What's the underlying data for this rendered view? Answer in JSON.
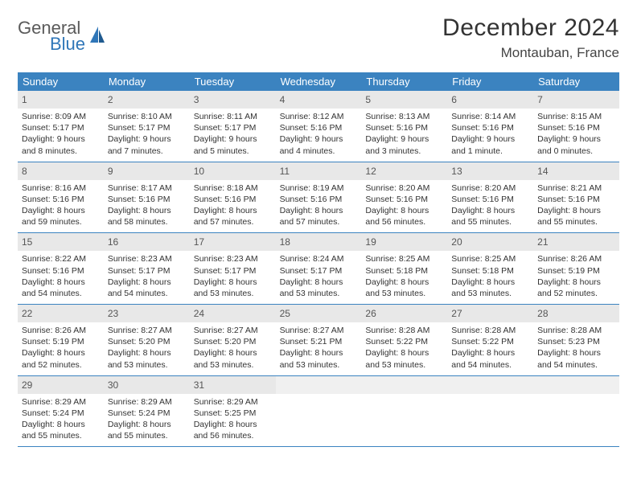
{
  "logo": {
    "line1": "General",
    "line2": "Blue"
  },
  "title": "December 2024",
  "location": "Montauban, France",
  "colors": {
    "header_bg": "#3b83c0",
    "daynum_bg": "#e8e8e8",
    "week_border": "#3b83c0",
    "logo_gray": "#5a5a5a",
    "logo_blue": "#2f76b8"
  },
  "weekdays": [
    "Sunday",
    "Monday",
    "Tuesday",
    "Wednesday",
    "Thursday",
    "Friday",
    "Saturday"
  ],
  "weeks": [
    [
      {
        "n": "1",
        "sr": "Sunrise: 8:09 AM",
        "ss": "Sunset: 5:17 PM",
        "d1": "Daylight: 9 hours",
        "d2": "and 8 minutes."
      },
      {
        "n": "2",
        "sr": "Sunrise: 8:10 AM",
        "ss": "Sunset: 5:17 PM",
        "d1": "Daylight: 9 hours",
        "d2": "and 7 minutes."
      },
      {
        "n": "3",
        "sr": "Sunrise: 8:11 AM",
        "ss": "Sunset: 5:17 PM",
        "d1": "Daylight: 9 hours",
        "d2": "and 5 minutes."
      },
      {
        "n": "4",
        "sr": "Sunrise: 8:12 AM",
        "ss": "Sunset: 5:16 PM",
        "d1": "Daylight: 9 hours",
        "d2": "and 4 minutes."
      },
      {
        "n": "5",
        "sr": "Sunrise: 8:13 AM",
        "ss": "Sunset: 5:16 PM",
        "d1": "Daylight: 9 hours",
        "d2": "and 3 minutes."
      },
      {
        "n": "6",
        "sr": "Sunrise: 8:14 AM",
        "ss": "Sunset: 5:16 PM",
        "d1": "Daylight: 9 hours",
        "d2": "and 1 minute."
      },
      {
        "n": "7",
        "sr": "Sunrise: 8:15 AM",
        "ss": "Sunset: 5:16 PM",
        "d1": "Daylight: 9 hours",
        "d2": "and 0 minutes."
      }
    ],
    [
      {
        "n": "8",
        "sr": "Sunrise: 8:16 AM",
        "ss": "Sunset: 5:16 PM",
        "d1": "Daylight: 8 hours",
        "d2": "and 59 minutes."
      },
      {
        "n": "9",
        "sr": "Sunrise: 8:17 AM",
        "ss": "Sunset: 5:16 PM",
        "d1": "Daylight: 8 hours",
        "d2": "and 58 minutes."
      },
      {
        "n": "10",
        "sr": "Sunrise: 8:18 AM",
        "ss": "Sunset: 5:16 PM",
        "d1": "Daylight: 8 hours",
        "d2": "and 57 minutes."
      },
      {
        "n": "11",
        "sr": "Sunrise: 8:19 AM",
        "ss": "Sunset: 5:16 PM",
        "d1": "Daylight: 8 hours",
        "d2": "and 57 minutes."
      },
      {
        "n": "12",
        "sr": "Sunrise: 8:20 AM",
        "ss": "Sunset: 5:16 PM",
        "d1": "Daylight: 8 hours",
        "d2": "and 56 minutes."
      },
      {
        "n": "13",
        "sr": "Sunrise: 8:20 AM",
        "ss": "Sunset: 5:16 PM",
        "d1": "Daylight: 8 hours",
        "d2": "and 55 minutes."
      },
      {
        "n": "14",
        "sr": "Sunrise: 8:21 AM",
        "ss": "Sunset: 5:16 PM",
        "d1": "Daylight: 8 hours",
        "d2": "and 55 minutes."
      }
    ],
    [
      {
        "n": "15",
        "sr": "Sunrise: 8:22 AM",
        "ss": "Sunset: 5:16 PM",
        "d1": "Daylight: 8 hours",
        "d2": "and 54 minutes."
      },
      {
        "n": "16",
        "sr": "Sunrise: 8:23 AM",
        "ss": "Sunset: 5:17 PM",
        "d1": "Daylight: 8 hours",
        "d2": "and 54 minutes."
      },
      {
        "n": "17",
        "sr": "Sunrise: 8:23 AM",
        "ss": "Sunset: 5:17 PM",
        "d1": "Daylight: 8 hours",
        "d2": "and 53 minutes."
      },
      {
        "n": "18",
        "sr": "Sunrise: 8:24 AM",
        "ss": "Sunset: 5:17 PM",
        "d1": "Daylight: 8 hours",
        "d2": "and 53 minutes."
      },
      {
        "n": "19",
        "sr": "Sunrise: 8:25 AM",
        "ss": "Sunset: 5:18 PM",
        "d1": "Daylight: 8 hours",
        "d2": "and 53 minutes."
      },
      {
        "n": "20",
        "sr": "Sunrise: 8:25 AM",
        "ss": "Sunset: 5:18 PM",
        "d1": "Daylight: 8 hours",
        "d2": "and 53 minutes."
      },
      {
        "n": "21",
        "sr": "Sunrise: 8:26 AM",
        "ss": "Sunset: 5:19 PM",
        "d1": "Daylight: 8 hours",
        "d2": "and 52 minutes."
      }
    ],
    [
      {
        "n": "22",
        "sr": "Sunrise: 8:26 AM",
        "ss": "Sunset: 5:19 PM",
        "d1": "Daylight: 8 hours",
        "d2": "and 52 minutes."
      },
      {
        "n": "23",
        "sr": "Sunrise: 8:27 AM",
        "ss": "Sunset: 5:20 PM",
        "d1": "Daylight: 8 hours",
        "d2": "and 53 minutes."
      },
      {
        "n": "24",
        "sr": "Sunrise: 8:27 AM",
        "ss": "Sunset: 5:20 PM",
        "d1": "Daylight: 8 hours",
        "d2": "and 53 minutes."
      },
      {
        "n": "25",
        "sr": "Sunrise: 8:27 AM",
        "ss": "Sunset: 5:21 PM",
        "d1": "Daylight: 8 hours",
        "d2": "and 53 minutes."
      },
      {
        "n": "26",
        "sr": "Sunrise: 8:28 AM",
        "ss": "Sunset: 5:22 PM",
        "d1": "Daylight: 8 hours",
        "d2": "and 53 minutes."
      },
      {
        "n": "27",
        "sr": "Sunrise: 8:28 AM",
        "ss": "Sunset: 5:22 PM",
        "d1": "Daylight: 8 hours",
        "d2": "and 54 minutes."
      },
      {
        "n": "28",
        "sr": "Sunrise: 8:28 AM",
        "ss": "Sunset: 5:23 PM",
        "d1": "Daylight: 8 hours",
        "d2": "and 54 minutes."
      }
    ],
    [
      {
        "n": "29",
        "sr": "Sunrise: 8:29 AM",
        "ss": "Sunset: 5:24 PM",
        "d1": "Daylight: 8 hours",
        "d2": "and 55 minutes."
      },
      {
        "n": "30",
        "sr": "Sunrise: 8:29 AM",
        "ss": "Sunset: 5:24 PM",
        "d1": "Daylight: 8 hours",
        "d2": "and 55 minutes."
      },
      {
        "n": "31",
        "sr": "Sunrise: 8:29 AM",
        "ss": "Sunset: 5:25 PM",
        "d1": "Daylight: 8 hours",
        "d2": "and 56 minutes."
      },
      {
        "empty": true
      },
      {
        "empty": true
      },
      {
        "empty": true
      },
      {
        "empty": true
      }
    ]
  ]
}
